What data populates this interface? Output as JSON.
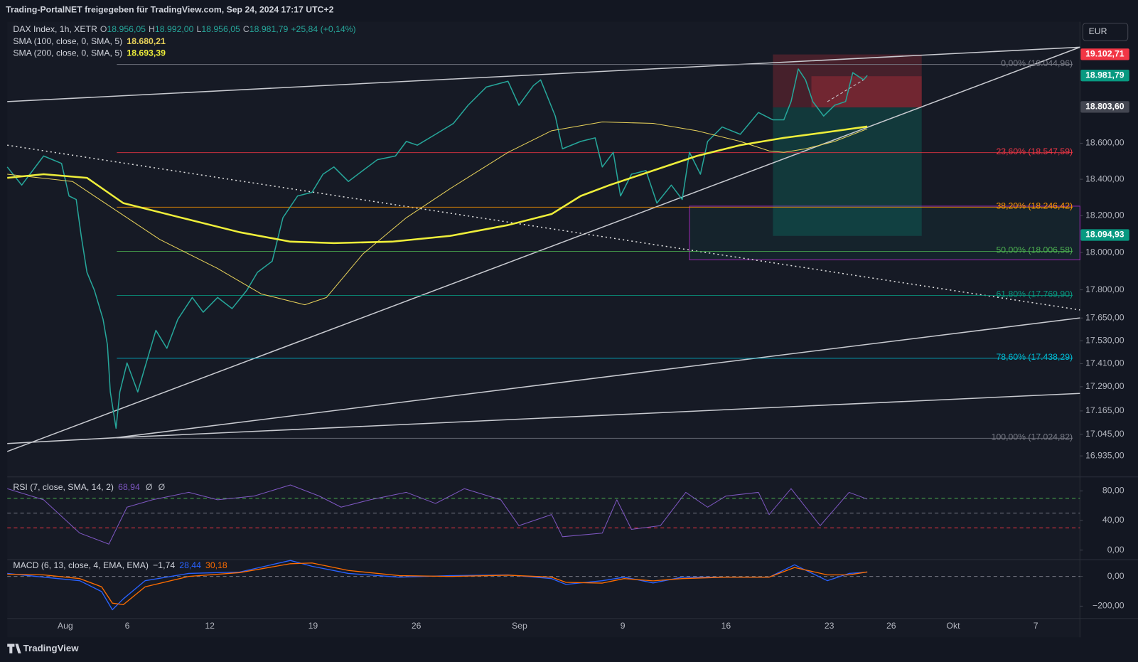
{
  "header": {
    "title": "Trading-PortalNET freigegeben für TradingView.com, Sep 24, 2024 17:17 UTC+2"
  },
  "currency": "EUR",
  "footer": "TradingView",
  "chart_data": [
    {
      "type": "line",
      "log_scale": true,
      "title": "DAX Index, 1h, XETR",
      "ohlc": [
        [
          "O",
          "18.956,05"
        ],
        [
          "H",
          "18.992,00"
        ],
        [
          "L",
          "18.956,05"
        ],
        [
          "C",
          "18.981,79"
        ]
      ],
      "change": "+25,84 (+0,14%)",
      "xlim": [
        -2.81,
        49.14
      ],
      "xticks": [
        {
          "value": 0,
          "label": "Aug"
        },
        {
          "value": 3,
          "label": "6"
        },
        {
          "value": 7,
          "label": "12"
        },
        {
          "value": 12,
          "label": "19"
        },
        {
          "value": 17,
          "label": "26"
        },
        {
          "value": 22,
          "label": "Sep"
        },
        {
          "value": 27,
          "label": "9"
        },
        {
          "value": 32,
          "label": "16"
        },
        {
          "value": 37,
          "label": "23"
        },
        {
          "value": 40,
          "label": "26"
        },
        {
          "value": 43,
          "label": "Okt"
        },
        {
          "value": 47,
          "label": "7"
        }
      ],
      "ylim": [
        16836,
        19290
      ],
      "yticks": [
        {
          "value": 16935,
          "label": "16.935,00"
        },
        {
          "value": 17045,
          "label": "17.045,00"
        },
        {
          "value": 17165,
          "label": "17.165,00"
        },
        {
          "value": 17290,
          "label": "17.290,00"
        },
        {
          "value": 17410,
          "label": "17.410,00"
        },
        {
          "value": 17530,
          "label": "17.530,00"
        },
        {
          "value": 17650,
          "label": "17.650,00"
        },
        {
          "value": 17800,
          "label": "17.800,00"
        },
        {
          "value": 18000,
          "label": "18.000,00"
        },
        {
          "value": 18200,
          "label": "18.200,00"
        },
        {
          "value": 18400,
          "label": "18.400,00"
        },
        {
          "value": 18600,
          "label": "18.600,00"
        }
      ],
      "series": [
        {
          "color": "#26a69a",
          "width": 1.5,
          "x": [
            -2.81,
            -2.11,
            -1.05,
            -0.18,
            0.18,
            0.53,
            0.77,
            1.05,
            1.41,
            1.83,
            2.04,
            2.18,
            2.46,
            2.64,
            2.99,
            3.51,
            3.87,
            4.39,
            4.92,
            5.45,
            6.15,
            6.68,
            7.38,
            8.08,
            8.79,
            9.31,
            10.02,
            10.54,
            11.25,
            11.95,
            12.48,
            13.01,
            13.71,
            14.41,
            15.11,
            15.99,
            16.52,
            17.05,
            17.93,
            18.8,
            19.51,
            20.39,
            21.44,
            21.97,
            22.67,
            23.02,
            23.73,
            24.08,
            24.96,
            25.66,
            26.01,
            26.54,
            26.89,
            27.42,
            28.12,
            28.65,
            29.35,
            29.88,
            30.23,
            30.76,
            31.11,
            31.81,
            32.69,
            33.57,
            34.27,
            34.8,
            35.15,
            35.5,
            35.85,
            36.2,
            36.73,
            37.26,
            37.79,
            38.14,
            38.66,
            38.84
          ],
          "values": [
            18468,
            18368,
            18529,
            18488,
            18308,
            18289,
            18090,
            17894,
            17797,
            17643,
            17509,
            17263,
            17076,
            17263,
            17414,
            17263,
            17395,
            17585,
            17490,
            17643,
            17759,
            17681,
            17759,
            17700,
            17797,
            17894,
            17953,
            18189,
            18308,
            18328,
            18428,
            18468,
            18388,
            18448,
            18508,
            18529,
            18610,
            18589,
            18650,
            18711,
            18813,
            18916,
            18949,
            18813,
            18924,
            18957,
            18752,
            18569,
            18610,
            18630,
            18468,
            18549,
            18308,
            18428,
            18448,
            18269,
            18368,
            18289,
            18549,
            18428,
            18610,
            18691,
            18650,
            18772,
            18731,
            18731,
            18834,
            19019,
            18957,
            18834,
            18752,
            18813,
            18834,
            18998,
            18957,
            18981.79
          ]
        },
        {
          "name": "SMA (100, close, 0, SMA, 5)",
          "value_label": "18.680,21",
          "color": "#e8d25a",
          "width": 1,
          "x": [
            -2.81,
            0.35,
            2.46,
            4.57,
            7.38,
            9.49,
            11.6,
            12.65,
            14.41,
            16.52,
            18.63,
            21.44,
            23.55,
            26.01,
            28.47,
            30.58,
            32.69,
            34.09,
            34.8,
            35.85,
            37.26,
            38.84
          ],
          "values": [
            18428,
            18388,
            18229,
            18071,
            17914,
            17778,
            17720,
            17759,
            17992,
            18189,
            18348,
            18549,
            18670,
            18719,
            18711,
            18670,
            18610,
            18557,
            18549,
            18569,
            18610,
            18680.21
          ]
        },
        {
          "name": "SMA (200, close, 0, SMA, 5)",
          "value_label": "18.693,39",
          "color": "#eeee3a",
          "width": 2.5,
          "x": [
            -2.81,
            -1.05,
            1.05,
            2.81,
            5.62,
            8.44,
            10.9,
            13.01,
            15.82,
            18.63,
            21.44,
            23.55,
            24.96,
            26.36,
            28.47,
            30.58,
            32.69,
            34.8,
            36.91,
            38.84
          ],
          "values": [
            18408,
            18428,
            18408,
            18269,
            18189,
            18110,
            18059,
            18051,
            18059,
            18090,
            18149,
            18209,
            18308,
            18368,
            18448,
            18529,
            18589,
            18630,
            18662,
            18693.39
          ]
        }
      ],
      "fib_levels": [
        {
          "label": "0,00% (19.044,96)",
          "value": 19044.96,
          "color": "#787b86"
        },
        {
          "label": "23,60% (18.547,59)",
          "value": 18547.59,
          "color": "#f23645"
        },
        {
          "label": "38,20% (18.246,42)",
          "value": 18246.42,
          "color": "#ff9800"
        },
        {
          "label": "50,00% (18.006,58)",
          "value": 18006.58,
          "color": "#4caf50"
        },
        {
          "label": "61,80% (17.769,90)",
          "value": 17769.9,
          "color": "#089981"
        },
        {
          "label": "78,60% (17.438,29)",
          "value": 17438.29,
          "color": "#00bcd4"
        },
        {
          "label": "100,00% (17.024,82)",
          "value": 17024.82,
          "color": "#787b86"
        }
      ],
      "price_tags": [
        {
          "label": "19.102,71",
          "value": 19102.71,
          "color": "#f23645"
        },
        {
          "label": "18.981,79",
          "value": 18981.79,
          "color": "#089981"
        },
        {
          "label": "18.803,60",
          "value": 18803.6,
          "color": "#434651"
        },
        {
          "label": "18.094,93",
          "value": 18094.93,
          "color": "#089981"
        }
      ]
    },
    {
      "type": "line",
      "title": "RSI (7, close, SMA, 14, 2)",
      "extra_labels": [
        "Ø",
        "Ø"
      ],
      "ylim": [
        -12,
        96
      ],
      "yticks": [
        {
          "value": 0,
          "label": "0,00"
        },
        {
          "value": 40,
          "label": "40,00"
        },
        {
          "value": 80,
          "label": "80,00"
        }
      ],
      "levels": [
        {
          "value": 70,
          "color": "#4caf50"
        },
        {
          "value": 50,
          "color": "#787b86"
        },
        {
          "value": 30,
          "color": "#f23645"
        }
      ],
      "series": [
        {
          "value_label": "68,94",
          "color": "#7e57c2",
          "width": 1,
          "x": [
            -2.81,
            -1.05,
            0.7,
            2.11,
            2.99,
            4.22,
            5.98,
            7.38,
            9.14,
            10.9,
            12.3,
            13.36,
            14.76,
            16.52,
            17.93,
            19.33,
            21.09,
            21.97,
            23.55,
            24.08,
            26.01,
            26.71,
            27.42,
            28.82,
            30.05,
            31.11,
            31.99,
            33.57,
            34.09,
            35.15,
            36.56,
            37.96,
            38.84
          ],
          "values": [
            83,
            68,
            23,
            8,
            58,
            68,
            78,
            68,
            73,
            88,
            73,
            58,
            68,
            78,
            63,
            83,
            68,
            33,
            48,
            18,
            23,
            68,
            28,
            33,
            78,
            58,
            73,
            78,
            48,
            83,
            33,
            78,
            68.94
          ]
        }
      ]
    },
    {
      "type": "line",
      "title": "MACD (6, 13, close, 4, EMA, EMA)",
      "histogram_label": "−1,74",
      "ylim": [
        -273,
        93
      ],
      "yticks": [
        {
          "value": 0,
          "label": "0,00"
        },
        {
          "value": -200,
          "label": "−200,00"
        }
      ],
      "levels": [
        {
          "value": 0,
          "color": "#787b86"
        }
      ],
      "series": [
        {
          "value_label": "28,44",
          "color": "#2962ff",
          "width": 1.3,
          "x": [
            -2.81,
            -1.05,
            0.7,
            1.76,
            2.28,
            2.81,
            3.87,
            5.98,
            8.44,
            10.9,
            11.95,
            13.71,
            16.17,
            18.63,
            21.44,
            23.55,
            24.25,
            26.01,
            27.07,
            28.47,
            29.88,
            31.99,
            34.09,
            35.32,
            36.91,
            37.96,
            38.84
          ],
          "values": [
            20,
            -5,
            -29,
            -102,
            -224,
            -151,
            -29,
            20,
            29,
            107,
            68,
            20,
            -5,
            5,
            10,
            -15,
            -54,
            -29,
            -5,
            -44,
            -5,
            -5,
            -5,
            78,
            -29,
            20,
            28.44
          ]
        },
        {
          "value_label": "30,18",
          "color": "#ff6d00",
          "width": 1.3,
          "x": [
            -2.81,
            -1.05,
            0.7,
            1.76,
            2.28,
            2.81,
            3.87,
            5.98,
            8.44,
            10.9,
            11.95,
            13.71,
            16.17,
            18.63,
            21.44,
            23.55,
            24.25,
            26.01,
            27.07,
            28.47,
            29.88,
            31.99,
            34.09,
            35.32,
            36.91,
            37.96,
            38.84
          ],
          "values": [
            15,
            10,
            -15,
            -70,
            -180,
            -190,
            -70,
            0,
            25,
            85,
            90,
            40,
            5,
            0,
            8,
            -5,
            -40,
            -45,
            -15,
            -30,
            -15,
            -5,
            -5,
            60,
            10,
            10,
            30.18
          ]
        }
      ]
    }
  ]
}
